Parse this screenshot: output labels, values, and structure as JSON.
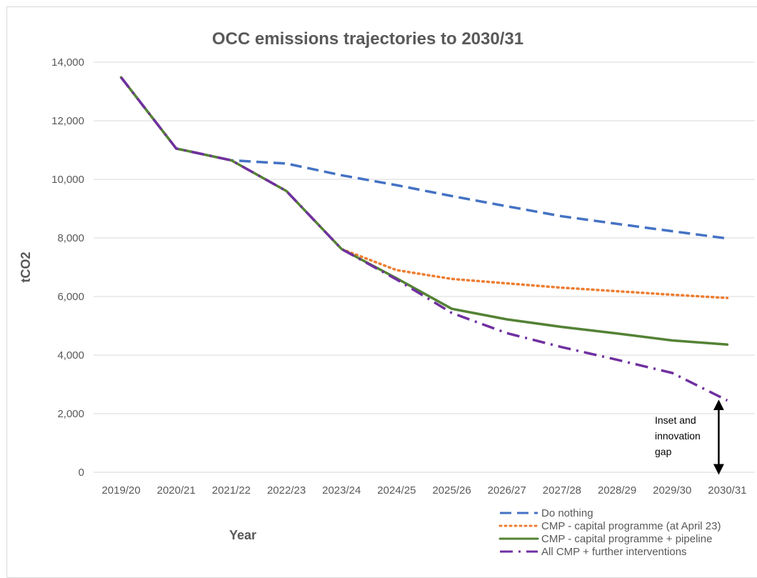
{
  "chart_data": {
    "type": "line",
    "title": "OCC emissions trajectories to 2030/31",
    "xlabel": "Year",
    "ylabel": "tCO2",
    "ylim": [
      0,
      14000
    ],
    "yticks": [
      0,
      2000,
      4000,
      6000,
      8000,
      10000,
      12000,
      14000
    ],
    "ytick_labels": [
      "0",
      "2,000",
      "4,000",
      "6,000",
      "8,000",
      "10,000",
      "12,000",
      "14,000"
    ],
    "grid": true,
    "legend_position": "bottom-right",
    "categories": [
      "2019/20",
      "2020/21",
      "2021/22",
      "2022/23",
      "2023/24",
      "2024/25",
      "2025/26",
      "2026/27",
      "2027/28",
      "2028/29",
      "2029/30",
      "2030/31"
    ],
    "series": [
      {
        "name": "Do nothing",
        "color": "#4472c4",
        "style": "dashed",
        "values": [
          13480,
          11050,
          10650,
          10540,
          10140,
          9800,
          9430,
          9080,
          8740,
          8480,
          8230,
          7980
        ]
      },
      {
        "name": "CMP - capital programme (at April 23)",
        "color": "#ed7d31",
        "style": "dotted",
        "values": [
          13480,
          11050,
          10650,
          9600,
          7620,
          6900,
          6600,
          6450,
          6300,
          6180,
          6060,
          5950
        ]
      },
      {
        "name": "CMP - capital programme + pipeline",
        "color": "#548235",
        "style": "solid",
        "values": [
          13480,
          11050,
          10650,
          9600,
          7620,
          6620,
          5580,
          5220,
          4960,
          4740,
          4500,
          4360
        ]
      },
      {
        "name": "All CMP + further interventions",
        "color": "#7030a0",
        "style": "dashdot",
        "values": [
          13480,
          11050,
          10650,
          9600,
          7620,
          6580,
          5440,
          4750,
          4270,
          3840,
          3390,
          2450
        ]
      }
    ],
    "annotation": {
      "lines": [
        "Inset and",
        "innovation",
        "gap"
      ],
      "arrow_from": 2300,
      "arrow_to": 0
    }
  }
}
